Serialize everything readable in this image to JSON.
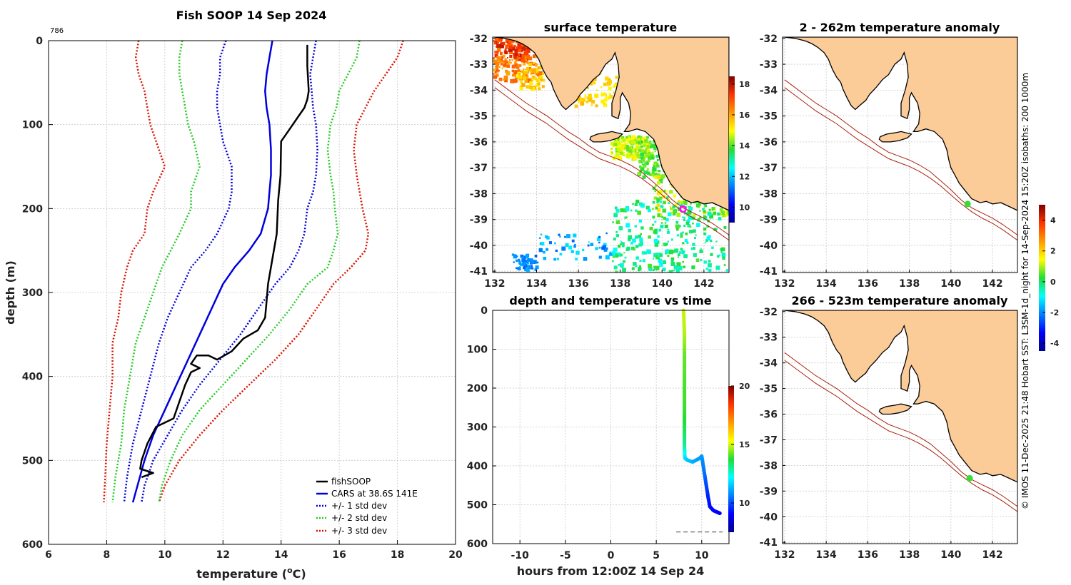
{
  "chart_data": [
    {
      "type": "line",
      "panel": "profile",
      "title": "Fish SOOP 14 Sep 2024",
      "corner_label": "786",
      "xlabel": "temperature (",
      "xlabel_sup": "o",
      "xlabel_tail": "C)",
      "ylabel": "depth (m)",
      "xlim": [
        6,
        20
      ],
      "ylim": [
        600,
        0
      ],
      "xticks": [
        "6",
        "8",
        "10",
        "12",
        "14",
        "16",
        "18",
        "20"
      ],
      "yticks": [
        "0",
        "100",
        "200",
        "300",
        "400",
        "500",
        "600"
      ],
      "legend": [
        "fishSOOP",
        "CARS at 38.6S 141E",
        "+/- 1 std dev",
        "+/- 2 std dev",
        "+/- 3 std dev"
      ],
      "colors": {
        "fishsoop": "#000000",
        "cars": "#0000dd",
        "std1": "#0000dd",
        "std2": "#22cc22",
        "std3": "#dd1100"
      },
      "series": {
        "fishsoop": [
          [
            14.9,
            5
          ],
          [
            14.9,
            30
          ],
          [
            14.95,
            60
          ],
          [
            14.9,
            70
          ],
          [
            14.8,
            80
          ],
          [
            14.6,
            90
          ],
          [
            14.4,
            100
          ],
          [
            14.2,
            110
          ],
          [
            14.0,
            120
          ],
          [
            13.98,
            160
          ],
          [
            13.9,
            190
          ],
          [
            13.85,
            230
          ],
          [
            13.7,
            260
          ],
          [
            13.55,
            290
          ],
          [
            13.5,
            310
          ],
          [
            13.45,
            330
          ],
          [
            13.2,
            345
          ],
          [
            12.7,
            355
          ],
          [
            12.3,
            370
          ],
          [
            11.8,
            380
          ],
          [
            11.5,
            375
          ],
          [
            11.1,
            375
          ],
          [
            10.9,
            385
          ],
          [
            11.2,
            390
          ],
          [
            10.9,
            395
          ],
          [
            10.7,
            410
          ],
          [
            10.5,
            430
          ],
          [
            10.3,
            450
          ],
          [
            9.7,
            460
          ],
          [
            9.4,
            480
          ],
          [
            9.2,
            500
          ],
          [
            9.15,
            510
          ],
          [
            9.6,
            515
          ],
          [
            9.2,
            520
          ]
        ],
        "cars": [
          [
            13.7,
            0
          ],
          [
            13.6,
            20
          ],
          [
            13.5,
            40
          ],
          [
            13.45,
            60
          ],
          [
            13.5,
            80
          ],
          [
            13.6,
            100
          ],
          [
            13.65,
            130
          ],
          [
            13.65,
            160
          ],
          [
            13.6,
            180
          ],
          [
            13.55,
            200
          ],
          [
            13.3,
            230
          ],
          [
            12.9,
            250
          ],
          [
            12.4,
            270
          ],
          [
            12.0,
            290
          ],
          [
            11.6,
            320
          ],
          [
            11.2,
            350
          ],
          [
            10.8,
            380
          ],
          [
            10.4,
            410
          ],
          [
            10.0,
            440
          ],
          [
            9.6,
            470
          ],
          [
            9.3,
            500
          ],
          [
            9.1,
            525
          ],
          [
            8.9,
            550
          ]
        ],
        "std1_lo": [
          [
            12.1,
            0
          ],
          [
            11.9,
            20
          ],
          [
            11.9,
            40
          ],
          [
            11.8,
            60
          ],
          [
            11.8,
            80
          ],
          [
            11.9,
            100
          ],
          [
            12.0,
            120
          ],
          [
            12.3,
            150
          ],
          [
            12.3,
            180
          ],
          [
            12.2,
            200
          ],
          [
            11.8,
            230
          ],
          [
            11.4,
            250
          ],
          [
            10.9,
            270
          ],
          [
            10.5,
            300
          ],
          [
            10.1,
            330
          ],
          [
            9.8,
            360
          ],
          [
            9.5,
            400
          ],
          [
            9.2,
            440
          ],
          [
            8.9,
            480
          ],
          [
            8.7,
            520
          ],
          [
            8.6,
            550
          ]
        ],
        "std1_hi": [
          [
            15.2,
            0
          ],
          [
            15.1,
            20
          ],
          [
            15.0,
            40
          ],
          [
            15.05,
            60
          ],
          [
            15.1,
            80
          ],
          [
            15.2,
            100
          ],
          [
            15.25,
            130
          ],
          [
            15.2,
            160
          ],
          [
            15.1,
            180
          ],
          [
            14.9,
            200
          ],
          [
            14.8,
            230
          ],
          [
            14.6,
            250
          ],
          [
            14.3,
            270
          ],
          [
            13.8,
            290
          ],
          [
            13.2,
            320
          ],
          [
            12.6,
            350
          ],
          [
            11.9,
            380
          ],
          [
            11.2,
            410
          ],
          [
            10.6,
            440
          ],
          [
            10.1,
            470
          ],
          [
            9.6,
            500
          ],
          [
            9.3,
            530
          ],
          [
            9.2,
            550
          ]
        ],
        "std2_lo": [
          [
            10.6,
            0
          ],
          [
            10.5,
            20
          ],
          [
            10.5,
            40
          ],
          [
            10.6,
            60
          ],
          [
            10.7,
            80
          ],
          [
            10.8,
            100
          ],
          [
            11.0,
            120
          ],
          [
            11.2,
            150
          ],
          [
            10.9,
            180
          ],
          [
            10.9,
            200
          ],
          [
            10.5,
            230
          ],
          [
            10.2,
            250
          ],
          [
            9.9,
            270
          ],
          [
            9.6,
            300
          ],
          [
            9.3,
            330
          ],
          [
            9.0,
            360
          ],
          [
            8.8,
            400
          ],
          [
            8.6,
            440
          ],
          [
            8.5,
            480
          ],
          [
            8.3,
            520
          ],
          [
            8.2,
            550
          ]
        ],
        "std2_hi": [
          [
            16.7,
            0
          ],
          [
            16.6,
            20
          ],
          [
            16.3,
            40
          ],
          [
            16.0,
            60
          ],
          [
            15.9,
            80
          ],
          [
            15.7,
            100
          ],
          [
            15.6,
            130
          ],
          [
            15.7,
            160
          ],
          [
            15.8,
            180
          ],
          [
            15.85,
            200
          ],
          [
            15.95,
            230
          ],
          [
            15.8,
            250
          ],
          [
            15.6,
            270
          ],
          [
            14.9,
            290
          ],
          [
            14.3,
            320
          ],
          [
            13.6,
            350
          ],
          [
            12.8,
            380
          ],
          [
            12.0,
            410
          ],
          [
            11.2,
            440
          ],
          [
            10.6,
            470
          ],
          [
            10.2,
            500
          ],
          [
            9.9,
            530
          ],
          [
            9.8,
            550
          ]
        ],
        "std3_lo": [
          [
            9.1,
            0
          ],
          [
            9.0,
            20
          ],
          [
            9.1,
            40
          ],
          [
            9.3,
            60
          ],
          [
            9.4,
            80
          ],
          [
            9.5,
            100
          ],
          [
            9.7,
            120
          ],
          [
            10.0,
            150
          ],
          [
            9.6,
            180
          ],
          [
            9.4,
            200
          ],
          [
            9.3,
            230
          ],
          [
            8.9,
            250
          ],
          [
            8.7,
            270
          ],
          [
            8.5,
            300
          ],
          [
            8.4,
            330
          ],
          [
            8.2,
            360
          ],
          [
            8.2,
            400
          ],
          [
            8.1,
            440
          ],
          [
            8.0,
            480
          ],
          [
            7.95,
            520
          ],
          [
            7.9,
            550
          ]
        ],
        "std3_hi": [
          [
            18.2,
            0
          ],
          [
            18.0,
            20
          ],
          [
            17.6,
            40
          ],
          [
            17.2,
            60
          ],
          [
            16.9,
            80
          ],
          [
            16.6,
            100
          ],
          [
            16.5,
            130
          ],
          [
            16.6,
            160
          ],
          [
            16.7,
            180
          ],
          [
            16.8,
            200
          ],
          [
            17.0,
            230
          ],
          [
            16.9,
            250
          ],
          [
            16.4,
            270
          ],
          [
            15.8,
            290
          ],
          [
            15.2,
            320
          ],
          [
            14.6,
            350
          ],
          [
            13.8,
            380
          ],
          [
            12.9,
            410
          ],
          [
            12.0,
            440
          ],
          [
            11.2,
            470
          ],
          [
            10.5,
            500
          ],
          [
            10.0,
            530
          ],
          [
            9.8,
            550
          ]
        ]
      }
    },
    {
      "type": "map",
      "panel": "surface",
      "title": "surface temperature",
      "xticks": [
        "132",
        "134",
        "136",
        "138",
        "140",
        "142"
      ],
      "yticks": [
        "-32",
        "-33",
        "-34",
        "-35",
        "-36",
        "-37",
        "-38",
        "-39",
        "-40",
        "-41"
      ],
      "colorbar_ticks": [
        "10",
        "12",
        "14",
        "16",
        "18"
      ],
      "colorbar_range": [
        9,
        18.5
      ],
      "marker": {
        "lon": 141.0,
        "lat": -38.6
      }
    },
    {
      "type": "scatter",
      "panel": "time",
      "title": "depth and temperature vs time",
      "xlabel": "hours from 12:00Z 14 Sep 24",
      "xlim": [
        -13,
        13
      ],
      "ylim": [
        600,
        0
      ],
      "xticks": [
        "-10",
        "-5",
        "0",
        "5",
        "10"
      ],
      "yticks": [
        "0",
        "100",
        "200",
        "300",
        "400",
        "500",
        "600"
      ],
      "colorbar_ticks": [
        "10",
        "15",
        "20"
      ],
      "colorbar_range": [
        7.5,
        20
      ],
      "track": [
        [
          8.0,
          0,
          14.9
        ],
        [
          8.1,
          60,
          14.8
        ],
        [
          8.1,
          120,
          14.2
        ],
        [
          8.1,
          200,
          14.0
        ],
        [
          8.1,
          260,
          13.9
        ],
        [
          8.1,
          300,
          13.6
        ],
        [
          8.1,
          350,
          13.0
        ],
        [
          8.15,
          380,
          11.9
        ],
        [
          8.4,
          385,
          11.6
        ],
        [
          9.0,
          390,
          11.3
        ],
        [
          9.4,
          385,
          11.1
        ],
        [
          9.8,
          380,
          11.0
        ],
        [
          10.0,
          375,
          11.0
        ],
        [
          10.1,
          390,
          10.8
        ],
        [
          10.3,
          420,
          10.5
        ],
        [
          10.5,
          450,
          10.0
        ],
        [
          10.7,
          480,
          9.5
        ],
        [
          10.9,
          505,
          9.2
        ],
        [
          11.3,
          515,
          9.1
        ],
        [
          11.8,
          520,
          9.1
        ],
        [
          12.0,
          522,
          9.0
        ]
      ],
      "dash_line_depth": 570
    },
    {
      "type": "map",
      "panel": "anomaly-shallow",
      "title": "2 - 262m temperature anomaly",
      "xticks": [
        "132",
        "134",
        "136",
        "138",
        "140",
        "142"
      ],
      "yticks": [
        "-32",
        "-33",
        "-34",
        "-35",
        "-36",
        "-37",
        "-38",
        "-39",
        "-40",
        "-41"
      ],
      "marker": {
        "lon": 140.8,
        "lat": -38.4
      }
    },
    {
      "type": "map",
      "panel": "anomaly-deep",
      "title": "266 - 523m temperature anomaly",
      "xticks": [
        "132",
        "134",
        "136",
        "138",
        "140",
        "142"
      ],
      "yticks": [
        "-32",
        "-33",
        "-34",
        "-35",
        "-36",
        "-37",
        "-38",
        "-39",
        "-40",
        "-41"
      ],
      "marker": {
        "lon": 140.9,
        "lat": -38.5
      }
    },
    {
      "type": "colorbar",
      "panel": "anomaly-colorbar",
      "ticks": [
        "4",
        "2",
        "0",
        "-2",
        "-4"
      ],
      "range": [
        -4.5,
        5
      ]
    }
  ],
  "credit": "© IMOS 11-Dec-2025 21:48 Hobart SST: L3SM-1d_night for 14-Sep-2024 15:20Z isobaths: 200  1000m",
  "colors": {
    "land": "#fbcb98",
    "coast": "#000000",
    "isobath": "#aa2211",
    "grid": "#c8c8c8"
  }
}
